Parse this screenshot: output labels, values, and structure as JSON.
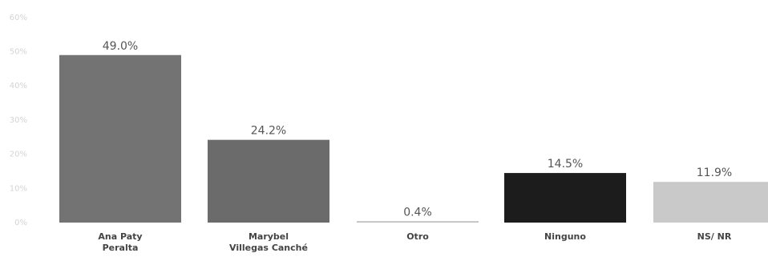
{
  "chart_data": {
    "type": "bar",
    "categories": [
      [
        "Ana Paty",
        "Peralta"
      ],
      [
        "Marybel",
        "Villegas Canché"
      ],
      [
        "Otro"
      ],
      [
        "Ninguno"
      ],
      [
        "NS/ NR"
      ]
    ],
    "values": [
      49.0,
      24.2,
      0.4,
      14.5,
      11.9
    ],
    "data_labels": [
      "49.0%",
      "24.2%",
      "0.4%",
      "14.5%",
      "11.9%"
    ],
    "bar_colors": [
      "#737373",
      "#6b6b6b",
      "#bdbdbd",
      "#1c1c1c",
      "#c9c9c9"
    ],
    "ylim": [
      0,
      60
    ],
    "yticks": [
      0,
      10,
      20,
      30,
      40,
      50,
      60
    ],
    "ytick_labels": [
      "0%",
      "10%",
      "20%",
      "30%",
      "40%",
      "50%",
      "60%"
    ],
    "grid": false,
    "title": "",
    "xlabel": "",
    "ylabel": ""
  }
}
